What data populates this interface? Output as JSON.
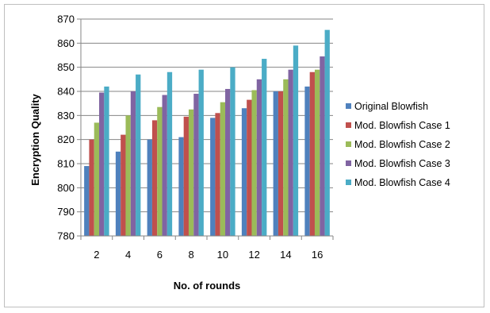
{
  "chart_data": {
    "type": "bar",
    "title": "",
    "xlabel": "No. of rounds",
    "ylabel": "Encryption Quality",
    "ylim": [
      780,
      870
    ],
    "yticks": [
      780,
      790,
      800,
      810,
      820,
      830,
      840,
      850,
      860,
      870
    ],
    "grid": true,
    "legend_position": "right",
    "categories": [
      "2",
      "4",
      "6",
      "8",
      "10",
      "12",
      "14",
      "16"
    ],
    "series": [
      {
        "name": "Original Blowfish",
        "color": "#4f81bd",
        "values": [
          809,
          815,
          820,
          821,
          829,
          833,
          840,
          842
        ]
      },
      {
        "name": "Mod. Blowfish Case 1",
        "color": "#c0504d",
        "values": [
          820,
          822,
          828,
          829.5,
          831,
          836.5,
          840,
          848
        ]
      },
      {
        "name": "Mod. Blowfish Case 2",
        "color": "#9bbb59",
        "values": [
          827,
          830,
          833.5,
          832.5,
          835.5,
          840.5,
          845,
          849
        ]
      },
      {
        "name": "Mod. Blowfish Case 3",
        "color": "#8064a2",
        "values": [
          839.5,
          840,
          838.5,
          839,
          841,
          845,
          849,
          854.5
        ]
      },
      {
        "name": "Mod. Blowfish Case 4",
        "color": "#4bacc6",
        "values": [
          842,
          847,
          848,
          849,
          850,
          853.5,
          859,
          865.5
        ]
      }
    ]
  }
}
